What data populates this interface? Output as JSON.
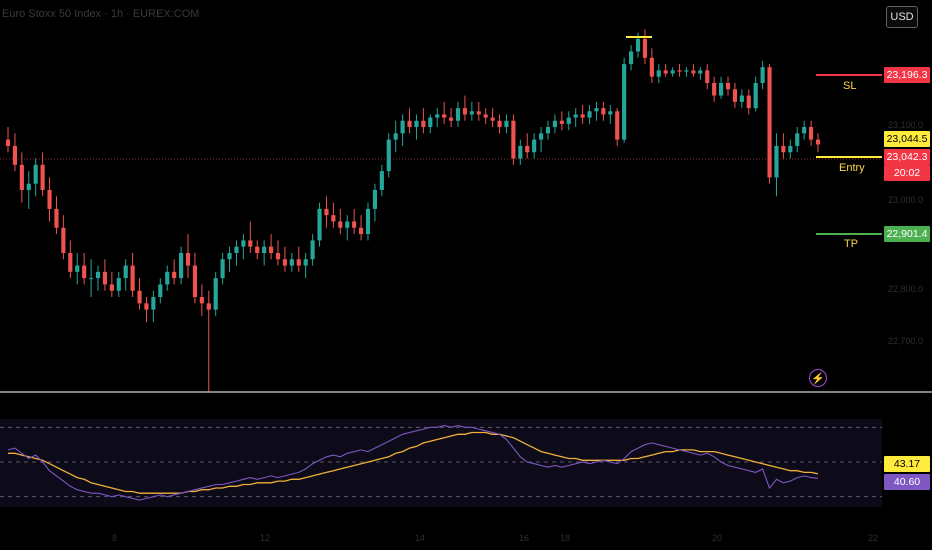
{
  "header": {
    "symbol_text": "Euro Stoxx 50 Index · 1h · EUREX:COM",
    "currency": "USD"
  },
  "levels": {
    "sl": {
      "label": "SL",
      "price": "23,196.3",
      "value": 23196.3,
      "color": "#f23645"
    },
    "entry": {
      "label": "Entry",
      "price": "23,044.5",
      "value": 23044.5,
      "color": "#ffeb3b"
    },
    "tp": {
      "label": "TP",
      "price": "22,901.4",
      "value": 22901.4,
      "color": "#4caf50"
    }
  },
  "last_price": {
    "price": "23,042.3",
    "countdown": "20:02",
    "color": "#f23645"
  },
  "faint_axis": {
    "prices": [
      "23,100.0",
      "23,000.0",
      "22,800.0",
      "22,700.0"
    ],
    "dates": [
      "8",
      "12",
      "14",
      "16",
      "18",
      "20",
      "22"
    ]
  },
  "rsi": {
    "value": "40.60",
    "ma_value": "43.17",
    "value_color": "#7e57c2",
    "ma_color": "#f0b03a"
  },
  "chart_data": {
    "type": "candlestick",
    "y_range": [
      22700,
      23240
    ],
    "up_color": "#26a69a",
    "down_color": "#ef5350",
    "ohlc": [
      [
        23050,
        23070,
        23030,
        23040
      ],
      [
        23040,
        23060,
        23000,
        23010
      ],
      [
        23010,
        23030,
        22950,
        22970
      ],
      [
        22970,
        23000,
        22940,
        22980
      ],
      [
        22980,
        23020,
        22960,
        23010
      ],
      [
        23010,
        23030,
        22960,
        22970
      ],
      [
        22970,
        22990,
        22920,
        22940
      ],
      [
        22940,
        22960,
        22900,
        22910
      ],
      [
        22910,
        22930,
        22860,
        22870
      ],
      [
        22870,
        22890,
        22830,
        22840
      ],
      [
        22840,
        22870,
        22820,
        22850
      ],
      [
        22850,
        22870,
        22820,
        22830
      ],
      [
        22830,
        22860,
        22800,
        22830
      ],
      [
        22830,
        22850,
        22810,
        22840
      ],
      [
        22840,
        22860,
        22810,
        22820
      ],
      [
        22820,
        22840,
        22800,
        22810
      ],
      [
        22810,
        22840,
        22800,
        22830
      ],
      [
        22830,
        22860,
        22810,
        22850
      ],
      [
        22850,
        22870,
        22800,
        22810
      ],
      [
        22810,
        22830,
        22780,
        22790
      ],
      [
        22790,
        22800,
        22760,
        22780
      ],
      [
        22780,
        22810,
        22760,
        22800
      ],
      [
        22800,
        22830,
        22790,
        22820
      ],
      [
        22820,
        22850,
        22810,
        22840
      ],
      [
        22840,
        22860,
        22820,
        22830
      ],
      [
        22830,
        22880,
        22820,
        22870
      ],
      [
        22870,
        22900,
        22830,
        22850
      ],
      [
        22850,
        22870,
        22790,
        22800
      ],
      [
        22800,
        22820,
        22770,
        22790
      ],
      [
        22790,
        22810,
        22650,
        22780
      ],
      [
        22780,
        22840,
        22770,
        22830
      ],
      [
        22830,
        22870,
        22820,
        22860
      ],
      [
        22860,
        22880,
        22840,
        22870
      ],
      [
        22870,
        22890,
        22850,
        22880
      ],
      [
        22880,
        22900,
        22860,
        22890
      ],
      [
        22890,
        22920,
        22870,
        22880
      ],
      [
        22880,
        22890,
        22860,
        22870
      ],
      [
        22870,
        22890,
        22850,
        22880
      ],
      [
        22880,
        22900,
        22860,
        22870
      ],
      [
        22870,
        22890,
        22850,
        22860
      ],
      [
        22860,
        22880,
        22840,
        22850
      ],
      [
        22850,
        22870,
        22840,
        22860
      ],
      [
        22860,
        22880,
        22840,
        22850
      ],
      [
        22850,
        22870,
        22830,
        22860
      ],
      [
        22860,
        22900,
        22850,
        22890
      ],
      [
        22890,
        22950,
        22880,
        22940
      ],
      [
        22940,
        22960,
        22910,
        22930
      ],
      [
        22930,
        22950,
        22910,
        22920
      ],
      [
        22920,
        22940,
        22900,
        22910
      ],
      [
        22910,
        22930,
        22890,
        22920
      ],
      [
        22920,
        22940,
        22900,
        22910
      ],
      [
        22910,
        22930,
        22890,
        22900
      ],
      [
        22900,
        22950,
        22890,
        22940
      ],
      [
        22940,
        22980,
        22920,
        22970
      ],
      [
        22970,
        23010,
        22960,
        23000
      ],
      [
        23000,
        23060,
        22990,
        23050
      ],
      [
        23050,
        23080,
        23030,
        23060
      ],
      [
        23060,
        23090,
        23040,
        23080
      ],
      [
        23080,
        23100,
        23060,
        23070
      ],
      [
        23070,
        23090,
        23050,
        23080
      ],
      [
        23080,
        23100,
        23060,
        23070
      ],
      [
        23070,
        23090,
        23060,
        23085
      ],
      [
        23085,
        23100,
        23070,
        23090
      ],
      [
        23090,
        23110,
        23075,
        23085
      ],
      [
        23085,
        23100,
        23070,
        23080
      ],
      [
        23080,
        23110,
        23070,
        23100
      ],
      [
        23100,
        23120,
        23080,
        23090
      ],
      [
        23090,
        23110,
        23080,
        23095
      ],
      [
        23095,
        23110,
        23080,
        23090
      ],
      [
        23090,
        23100,
        23075,
        23085
      ],
      [
        23085,
        23100,
        23070,
        23080
      ],
      [
        23080,
        23090,
        23060,
        23070
      ],
      [
        23070,
        23090,
        23060,
        23080
      ],
      [
        23080,
        23090,
        23010,
        23020
      ],
      [
        23020,
        23050,
        23010,
        23040
      ],
      [
        23040,
        23060,
        23020,
        23030
      ],
      [
        23030,
        23060,
        23020,
        23050
      ],
      [
        23050,
        23070,
        23030,
        23060
      ],
      [
        23060,
        23080,
        23050,
        23070
      ],
      [
        23070,
        23090,
        23060,
        23080
      ],
      [
        23080,
        23095,
        23065,
        23075
      ],
      [
        23075,
        23095,
        23065,
        23085
      ],
      [
        23085,
        23100,
        23070,
        23090
      ],
      [
        23090,
        23105,
        23075,
        23085
      ],
      [
        23085,
        23105,
        23075,
        23095
      ],
      [
        23095,
        23110,
        23080,
        23100
      ],
      [
        23100,
        23110,
        23080,
        23090
      ],
      [
        23090,
        23105,
        23075,
        23095
      ],
      [
        23095,
        23100,
        23040,
        23050
      ],
      [
        23050,
        23180,
        23045,
        23170
      ],
      [
        23170,
        23200,
        23160,
        23190
      ],
      [
        23190,
        23220,
        23180,
        23210
      ],
      [
        23210,
        23225,
        23170,
        23180
      ],
      [
        23180,
        23195,
        23140,
        23150
      ],
      [
        23150,
        23170,
        23140,
        23160
      ],
      [
        23160,
        23170,
        23150,
        23155
      ],
      [
        23155,
        23165,
        23150,
        23160
      ],
      [
        23160,
        23170,
        23150,
        23158
      ],
      [
        23158,
        23165,
        23150,
        23160
      ],
      [
        23160,
        23170,
        23150,
        23155
      ],
      [
        23155,
        23165,
        23145,
        23160
      ],
      [
        23160,
        23170,
        23130,
        23140
      ],
      [
        23140,
        23150,
        23110,
        23120
      ],
      [
        23120,
        23150,
        23115,
        23140
      ],
      [
        23140,
        23150,
        23120,
        23130
      ],
      [
        23130,
        23140,
        23100,
        23110
      ],
      [
        23110,
        23130,
        23100,
        23120
      ],
      [
        23120,
        23130,
        23090,
        23100
      ],
      [
        23100,
        23150,
        23095,
        23140
      ],
      [
        23140,
        23175,
        23130,
        23165
      ],
      [
        23165,
        23170,
        22980,
        22990
      ],
      [
        22990,
        23060,
        22960,
        23040
      ],
      [
        23040,
        23060,
        23020,
        23030
      ],
      [
        23030,
        23050,
        23020,
        23040
      ],
      [
        23040,
        23070,
        23030,
        23060
      ],
      [
        23060,
        23080,
        23050,
        23070
      ],
      [
        23070,
        23080,
        23040,
        23050
      ],
      [
        23050,
        23060,
        23030,
        23042.3
      ]
    ],
    "rsi_series": {
      "name": "RSI",
      "values": [
        57,
        58,
        55,
        52,
        54,
        50,
        45,
        42,
        39,
        36,
        34,
        33,
        32,
        32,
        31,
        30,
        31,
        30,
        29,
        28,
        29,
        30,
        31,
        30,
        31,
        32,
        33,
        34,
        35,
        36,
        37,
        37,
        38,
        39,
        40,
        41,
        40,
        41,
        42,
        41,
        42,
        43,
        44,
        46,
        49,
        51,
        53,
        54,
        53,
        55,
        56,
        57,
        56,
        58,
        60,
        62,
        64,
        66,
        67,
        68,
        69,
        70,
        70,
        71,
        70,
        71,
        70,
        70,
        69,
        68,
        67,
        66,
        63,
        58,
        53,
        50,
        49,
        48,
        47,
        48,
        47,
        48,
        49,
        50,
        49,
        50,
        51,
        50,
        49,
        52,
        56,
        58,
        60,
        61,
        60,
        59,
        58,
        57,
        56,
        55,
        54,
        55,
        53,
        50,
        48,
        47,
        46,
        45,
        44,
        46,
        35,
        40,
        38,
        39,
        41,
        42,
        41,
        40.6
      ]
    },
    "rsi_ma": {
      "name": "RSI-based MA",
      "values": [
        55,
        55,
        54,
        53,
        52,
        51,
        49,
        47,
        45,
        43,
        41,
        40,
        38,
        37,
        36,
        35,
        34,
        33,
        33,
        32,
        32,
        32,
        32,
        32,
        32,
        32,
        33,
        33,
        34,
        34,
        35,
        35,
        36,
        36,
        37,
        37,
        38,
        38,
        38,
        39,
        39,
        40,
        40,
        41,
        42,
        43,
        44,
        45,
        46,
        47,
        48,
        49,
        50,
        51,
        52,
        53,
        55,
        56,
        58,
        59,
        61,
        62,
        63,
        64,
        65,
        66,
        66,
        67,
        67,
        67,
        66,
        66,
        65,
        64,
        62,
        60,
        58,
        56,
        55,
        54,
        53,
        52,
        52,
        51,
        51,
        51,
        51,
        51,
        51,
        51,
        52,
        52,
        53,
        54,
        55,
        56,
        56,
        57,
        57,
        57,
        56,
        56,
        56,
        55,
        54,
        53,
        52,
        51,
        50,
        49,
        48,
        47,
        46,
        45,
        45,
        44,
        44,
        43.17
      ]
    },
    "rsi_levels": [
      70,
      50,
      30
    ],
    "rsi_range": [
      20,
      80
    ]
  }
}
